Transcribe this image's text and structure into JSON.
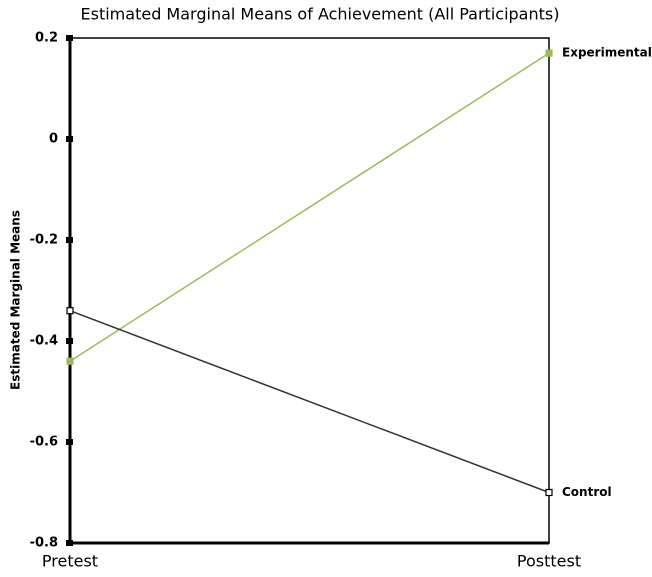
{
  "chart_data": {
    "type": "line",
    "title": "Estimated Marginal Means of Achievement (All Participants)",
    "y_label": "Estimated Marginal Means",
    "categories": [
      "Pretest",
      "Posttest"
    ],
    "series": [
      {
        "name": "Experimental",
        "color": "#9bbb59",
        "values": [
          -0.44,
          0.17
        ]
      },
      {
        "name": "Control",
        "color": "#333333",
        "values": [
          -0.34,
          -0.7
        ]
      }
    ],
    "ylim": [
      -0.8,
      0.2
    ],
    "yticks": [
      0.2,
      0,
      -0.2,
      -0.4,
      -0.6,
      -0.8
    ],
    "grid": false
  }
}
